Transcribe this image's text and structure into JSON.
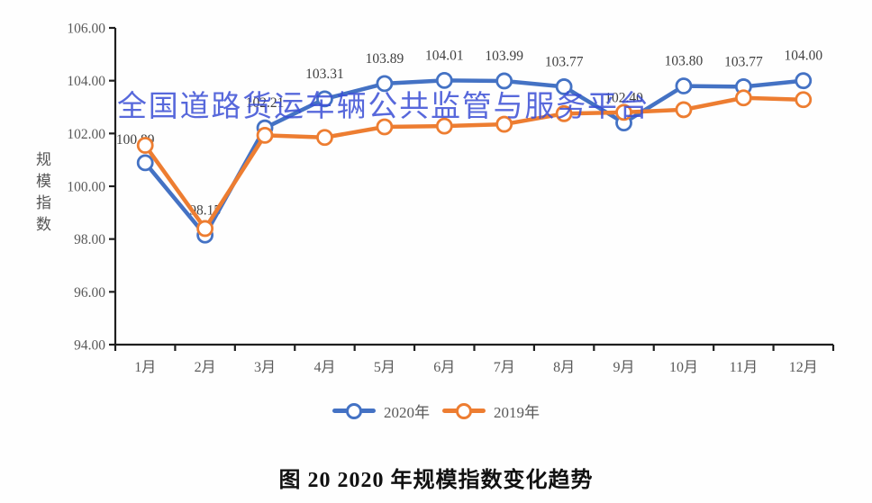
{
  "watermark": {
    "text": "全国道路货运车辆公共监管与服务平台",
    "color": "#3a4ed6"
  },
  "chart_data": {
    "type": "line",
    "title": "图 20 2020 年规模指数变化趋势",
    "ylabel": "规模指数",
    "xlabel": "",
    "categories": [
      "1月",
      "2月",
      "3月",
      "4月",
      "5月",
      "6月",
      "7月",
      "8月",
      "9月",
      "10月",
      "11月",
      "12月"
    ],
    "ylim": [
      94,
      106
    ],
    "ytick_step": 2,
    "ytick_labels": [
      "94.00",
      "96.00",
      "98.00",
      "100.00",
      "102.00",
      "104.00",
      "106.00"
    ],
    "grid": false,
    "legend_position": "bottom",
    "series": [
      {
        "name": "2020年",
        "color": "#4472c4",
        "show_labels": true,
        "values": [
          100.89,
          98.15,
          102.21,
          103.31,
          103.89,
          104.01,
          103.99,
          103.77,
          102.4,
          103.8,
          103.77,
          104.0
        ],
        "labels": [
          "100.89",
          "98.15",
          "102.21",
          "103.31",
          "103.89",
          "104.01",
          "103.99",
          "103.77",
          "102.40",
          "103.80",
          "103.77",
          "104.00"
        ]
      },
      {
        "name": "2019年",
        "color": "#ed7d31",
        "show_labels": false,
        "values": [
          101.55,
          98.4,
          101.93,
          101.85,
          102.25,
          102.28,
          102.35,
          102.75,
          102.8,
          102.9,
          103.35,
          103.28
        ]
      }
    ]
  }
}
